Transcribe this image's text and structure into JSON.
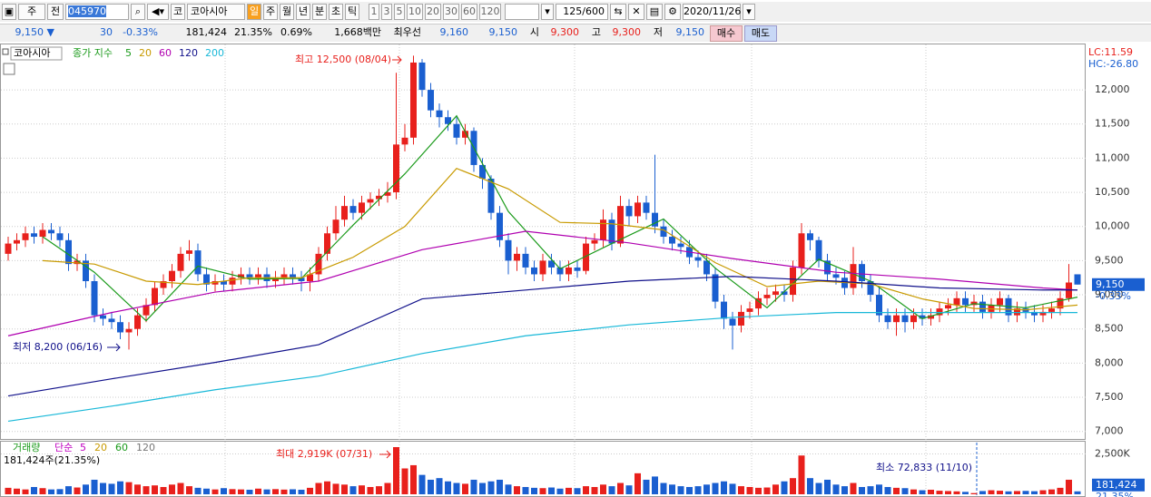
{
  "toolbar": {
    "market": "주",
    "all": "전",
    "code": "045970",
    "exchange": "코",
    "name": "코아시아",
    "periods": [
      "일",
      "주",
      "월",
      "년",
      "분",
      "초",
      "틱"
    ],
    "intervals": [
      "1",
      "3",
      "5",
      "10",
      "20",
      "30",
      "60",
      "120"
    ],
    "count": "125/600",
    "date": "2020/11/26"
  },
  "quote": {
    "price": "9,150 ▼",
    "change": "30",
    "change_rate": "-0.33%",
    "volume": "181,424",
    "turnover_rate": "21.35%",
    "volume_change": "0.69%",
    "amount": "1,668백만",
    "best_label": "최우선",
    "best_ask": "9,160",
    "best_bid": "9,150",
    "open_label": "시",
    "open": "9,300",
    "high_label": "고",
    "high": "9,300",
    "low_label": "저",
    "low": "9,150",
    "buy": "매수",
    "sell": "매도"
  },
  "chart_data": [
    {
      "type": "candlestick",
      "title": "코아시아",
      "legend_label": "종가 지수",
      "up_color": "#e8201c",
      "down_color": "#1a5fd0",
      "grid": true,
      "open": [
        9600,
        9750,
        9800,
        9900,
        9850,
        9950,
        9900,
        9800,
        9450,
        9500,
        9200,
        8700,
        8650,
        8600,
        8450,
        8500,
        8700,
        8850,
        9100,
        9200,
        9350,
        9600,
        9650,
        9300,
        9150,
        9200,
        9150,
        9250,
        9300,
        9250,
        9300,
        9200,
        9250,
        9300,
        9250,
        9200,
        9300,
        9600,
        9900,
        10100,
        10300,
        10200,
        10350,
        10400,
        10450,
        10500,
        11200,
        11300,
        12400,
        12000,
        11700,
        11600,
        11500,
        11300,
        11400,
        10900,
        10700,
        10200,
        9800,
        9500,
        9600,
        9400,
        9300,
        9500,
        9400,
        9300,
        9400,
        9350,
        9750,
        9800,
        10100,
        9750,
        10300,
        10150,
        10350,
        10200,
        10000,
        9850,
        9750,
        9700,
        9550,
        9500,
        9300,
        8900,
        8650,
        8550,
        8750,
        8800,
        8950,
        9000,
        9050,
        9000,
        9400,
        9900,
        9800,
        9500,
        9300,
        9250,
        9100,
        9450,
        9200,
        9000,
        8700,
        8600,
        8700,
        8600,
        8700,
        8650,
        8700,
        8800,
        8850,
        8950,
        8850,
        8900,
        8750,
        8850,
        8950,
        8700,
        8800,
        8750,
        8700,
        8750,
        8800,
        8950,
        9300
      ],
      "high": [
        9850,
        9900,
        10000,
        10000,
        10050,
        10050,
        10000,
        9900,
        9600,
        9600,
        9300,
        8800,
        8750,
        8700,
        8600,
        8800,
        8950,
        9200,
        9300,
        9450,
        9700,
        9800,
        9750,
        9400,
        9300,
        9300,
        9350,
        9400,
        9400,
        9400,
        9400,
        9350,
        9400,
        9400,
        9350,
        9400,
        9700,
        10000,
        10300,
        10450,
        10400,
        10450,
        10500,
        10550,
        10650,
        12250,
        11500,
        12500,
        12450,
        12100,
        11800,
        11700,
        11600,
        11500,
        11450,
        11000,
        10750,
        10300,
        9900,
        9700,
        9700,
        9500,
        9600,
        9600,
        9500,
        9500,
        9500,
        9850,
        9900,
        10250,
        10200,
        10450,
        10400,
        10450,
        10450,
        11050,
        10100,
        9950,
        9850,
        9800,
        9650,
        9600,
        9400,
        9000,
        8750,
        8850,
        8900,
        9050,
        9100,
        9150,
        9150,
        9500,
        10050,
        9950,
        9850,
        9600,
        9400,
        9350,
        9700,
        9500,
        9300,
        9100,
        8800,
        8800,
        8800,
        8800,
        8800,
        8800,
        8900,
        8950,
        9050,
        9050,
        9000,
        9000,
        8950,
        9050,
        9000,
        8900,
        8900,
        8850,
        8850,
        8900,
        9050,
        9450,
        9300
      ],
      "low": [
        9500,
        9650,
        9700,
        9750,
        9750,
        9800,
        9700,
        9350,
        9350,
        9100,
        8600,
        8550,
        8500,
        8350,
        8200,
        8400,
        8600,
        8750,
        9000,
        9100,
        9250,
        9500,
        9200,
        9050,
        9050,
        9050,
        9050,
        9150,
        9150,
        9150,
        9100,
        9100,
        9150,
        9150,
        9050,
        9050,
        9200,
        9500,
        9800,
        10000,
        10100,
        10100,
        10250,
        10300,
        10350,
        10400,
        11100,
        11200,
        11900,
        11600,
        11450,
        11400,
        11200,
        11200,
        10800,
        10550,
        10100,
        9700,
        9300,
        9350,
        9300,
        9200,
        9200,
        9300,
        9200,
        9200,
        9250,
        9300,
        9650,
        9700,
        9650,
        9700,
        10000,
        10050,
        10100,
        9900,
        9750,
        9650,
        9600,
        9450,
        9400,
        9200,
        8800,
        8500,
        8200,
        8450,
        8650,
        8700,
        8850,
        8900,
        8900,
        8900,
        9300,
        9650,
        9400,
        9200,
        9150,
        9000,
        9000,
        9100,
        8900,
        8600,
        8500,
        8400,
        8450,
        8500,
        8550,
        8550,
        8600,
        8700,
        8750,
        8750,
        8750,
        8650,
        8650,
        8750,
        8600,
        8600,
        8650,
        8600,
        8600,
        8650,
        8700,
        8900,
        9150
      ],
      "close": [
        9750,
        9800,
        9900,
        9850,
        9950,
        9900,
        9800,
        9450,
        9500,
        9200,
        8700,
        8650,
        8600,
        8450,
        8500,
        8700,
        8850,
        9100,
        9200,
        9350,
        9600,
        9650,
        9300,
        9150,
        9200,
        9150,
        9250,
        9300,
        9250,
        9300,
        9200,
        9250,
        9300,
        9250,
        9200,
        9300,
        9600,
        9900,
        10100,
        10300,
        10200,
        10350,
        10400,
        10450,
        10500,
        11200,
        11300,
        12400,
        12000,
        11700,
        11600,
        11500,
        11300,
        11400,
        10900,
        10700,
        10200,
        9800,
        9500,
        9600,
        9400,
        9300,
        9500,
        9400,
        9300,
        9400,
        9350,
        9750,
        9800,
        10100,
        9750,
        10300,
        10150,
        10350,
        10200,
        10000,
        9850,
        9750,
        9700,
        9550,
        9500,
        9300,
        8900,
        8650,
        8550,
        8750,
        8800,
        8950,
        9000,
        9050,
        9000,
        9400,
        9900,
        9800,
        9500,
        9300,
        9250,
        9100,
        9450,
        9200,
        9000,
        8700,
        8600,
        8700,
        8600,
        8700,
        8650,
        8700,
        8800,
        8850,
        8950,
        8850,
        8900,
        8750,
        8850,
        8950,
        8700,
        8800,
        8750,
        8700,
        8750,
        8800,
        8950,
        9180,
        9150
      ],
      "ylim": [
        6890,
        12625
      ],
      "yticks": [
        {
          "value": 7000,
          "label": "7,000"
        },
        {
          "value": 7500,
          "label": "7,500"
        },
        {
          "value": 8000,
          "label": "8,000"
        },
        {
          "value": 8500,
          "label": "8,500"
        },
        {
          "value": 9000,
          "label": "9,000"
        },
        {
          "value": 9500,
          "label": "9,500"
        },
        {
          "value": 10000,
          "label": "10,000"
        },
        {
          "value": 10500,
          "label": "10,500"
        },
        {
          "value": 11000,
          "label": "11,000"
        },
        {
          "value": 11500,
          "label": "11,500"
        },
        {
          "value": 12000,
          "label": "12,000"
        }
      ],
      "series": [
        {
          "name": "5",
          "color": "#1a9a1a",
          "x": [
            4,
            10,
            16,
            22,
            28,
            34,
            40,
            46,
            52,
            58,
            64,
            70,
            76,
            82,
            88,
            94,
            100,
            106,
            112,
            118,
            124
          ],
          "values": [
            9850,
            9330,
            8620,
            9420,
            9230,
            9240,
            10020,
            10770,
            11620,
            10220,
            9380,
            9750,
            10110,
            9390,
            8810,
            9520,
            9200,
            8650,
            8870,
            8810,
            8966
          ]
        },
        {
          "name": "20",
          "color": "#c89a00",
          "x": [
            4,
            10,
            16,
            22,
            28,
            34,
            40,
            46,
            52,
            58,
            64,
            70,
            76,
            82,
            88,
            94,
            100,
            106,
            112,
            118,
            124
          ],
          "values": [
            9500,
            9450,
            9200,
            9150,
            9250,
            9250,
            9550,
            10000,
            10850,
            10550,
            10060,
            10040,
            9950,
            9470,
            9120,
            9200,
            9160,
            8940,
            8800,
            8780,
            8850
          ]
        },
        {
          "name": "60",
          "color": "#b000b0",
          "x": [
            0,
            12,
            24,
            36,
            48,
            60,
            72,
            84,
            96,
            108,
            120,
            124
          ],
          "values": [
            8400,
            8740,
            9040,
            9200,
            9660,
            9930,
            9760,
            9530,
            9330,
            9230,
            9100,
            9070
          ]
        },
        {
          "name": "120",
          "color": "#10108a",
          "x": [
            0,
            12,
            24,
            36,
            48,
            60,
            72,
            84,
            96,
            108,
            120,
            124
          ],
          "values": [
            7520,
            7770,
            8010,
            8270,
            8940,
            9070,
            9200,
            9270,
            9200,
            9100,
            9070,
            9070
          ]
        },
        {
          "name": "200",
          "color": "#18b8d8",
          "x": [
            0,
            12,
            24,
            36,
            48,
            60,
            72,
            84,
            96,
            108,
            120,
            124
          ],
          "values": [
            7150,
            7370,
            7610,
            7810,
            8140,
            8400,
            8560,
            8670,
            8740,
            8740,
            8740,
            8740
          ]
        }
      ],
      "annotations": [
        "최고 12,500 (08/04)",
        "최저 8,200 (06/16)"
      ],
      "last_price": {
        "value": 9150,
        "label": "9,150"
      },
      "last_change": "-0.33%",
      "lc": "LC:11.59",
      "hc": "HC:-26.80"
    },
    {
      "type": "volume",
      "title": "거래량",
      "legend_label": "단순",
      "ma_legend": [
        {
          "name": "5",
          "color": "#c000c0"
        },
        {
          "name": "20",
          "color": "#c89a00"
        },
        {
          "name": "60",
          "color": "#1a9a1a"
        },
        {
          "name": "120",
          "color": "#777777"
        }
      ],
      "values": [
        400,
        350,
        300,
        450,
        380,
        300,
        320,
        500,
        420,
        600,
        900,
        700,
        650,
        800,
        750,
        600,
        500,
        550,
        450,
        600,
        700,
        500,
        400,
        350,
        300,
        380,
        320,
        300,
        280,
        350,
        300,
        320,
        290,
        310,
        280,
        400,
        700,
        800,
        650,
        600,
        500,
        550,
        450,
        500,
        700,
        2919,
        1600,
        1800,
        1200,
        900,
        1000,
        800,
        700,
        650,
        900,
        700,
        800,
        900,
        600,
        500,
        450,
        400,
        380,
        420,
        350,
        400,
        380,
        500,
        450,
        600,
        500,
        700,
        550,
        1300,
        900,
        1100,
        700,
        600,
        500,
        450,
        500,
        600,
        700,
        800,
        650,
        500,
        450,
        400,
        420,
        600,
        800,
        1000,
        2400,
        1000,
        700,
        900,
        600,
        500,
        700,
        450,
        500,
        600,
        450,
        400,
        380,
        300,
        250,
        280,
        220,
        200,
        180,
        150,
        72.833,
        200,
        250,
        220,
        180,
        200,
        210,
        190,
        250,
        300,
        400,
        900,
        181.424
      ],
      "ylim": [
        0,
        3200
      ],
      "yticks": [
        {
          "value": 2500,
          "label": "2,500K"
        }
      ],
      "summary": "181,424주(21.35%)",
      "annotations": [
        "최대 2,919K (07/31)",
        "최소 72,833 (11/10)"
      ],
      "last_value": {
        "value": 181.424,
        "label": "181,424"
      },
      "last_rate": "21.35%"
    }
  ]
}
